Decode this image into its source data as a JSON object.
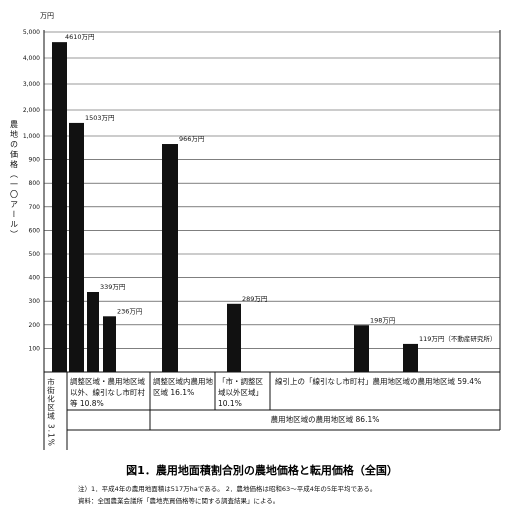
{
  "chart_data": {
    "type": "bar",
    "title": "図1．農用地面積割合別の農地価格と転用価格（全国）",
    "y_unit": "万円",
    "y_label": "農地の価格（一〇アール）",
    "ylim": [
      0,
      5000
    ],
    "ybreak": 1000,
    "yticks": [
      {
        "value": 100,
        "label": "100"
      },
      {
        "value": 200,
        "label": "200"
      },
      {
        "value": 300,
        "label": "300"
      },
      {
        "value": 400,
        "label": "400"
      },
      {
        "value": 500,
        "label": "500"
      },
      {
        "value": 600,
        "label": "600"
      },
      {
        "value": 700,
        "label": "700"
      },
      {
        "value": 800,
        "label": "800"
      },
      {
        "value": 900,
        "label": "900"
      },
      {
        "value": 1000,
        "label": "1,000"
      },
      {
        "value": 2000,
        "label": "2,000"
      },
      {
        "value": 3000,
        "label": "3,000"
      },
      {
        "value": 4000,
        "label": "4,000"
      },
      {
        "value": 5000,
        "label": "5,000"
      }
    ],
    "grid": true,
    "color": "#111111",
    "categories": [
      null,
      null,
      null,
      null,
      null,
      null,
      null,
      null
    ],
    "values": [
      4610,
      1503,
      339,
      236,
      966,
      289,
      198,
      119
    ],
    "value_labels": [
      "4610万円",
      "1503万円",
      "339万円",
      "236万円",
      "966万円",
      "289万円",
      "198万円",
      "119万円（不動産研究所）"
    ],
    "groups": [
      "市街化区域 3.1%",
      "調整区域・農用地区域以外、線引なし市町村等 10.8%",
      "調整区域内農用地区域 16.1%",
      "「市・調整区域以外区域」 10.1%",
      "線引上の「線引なし市町村」農用地区域の農用地区域 59.4%",
      "農用地区域の農用地区域 86.1%"
    ],
    "notes": [
      "注）1．平成4年の農用地面積は517万haである。 2．農地価格は昭和63〜平成4年の5年平均である。",
      "資料：全国農業会議所「農地売買価格等に関する調査結果」による。"
    ]
  }
}
